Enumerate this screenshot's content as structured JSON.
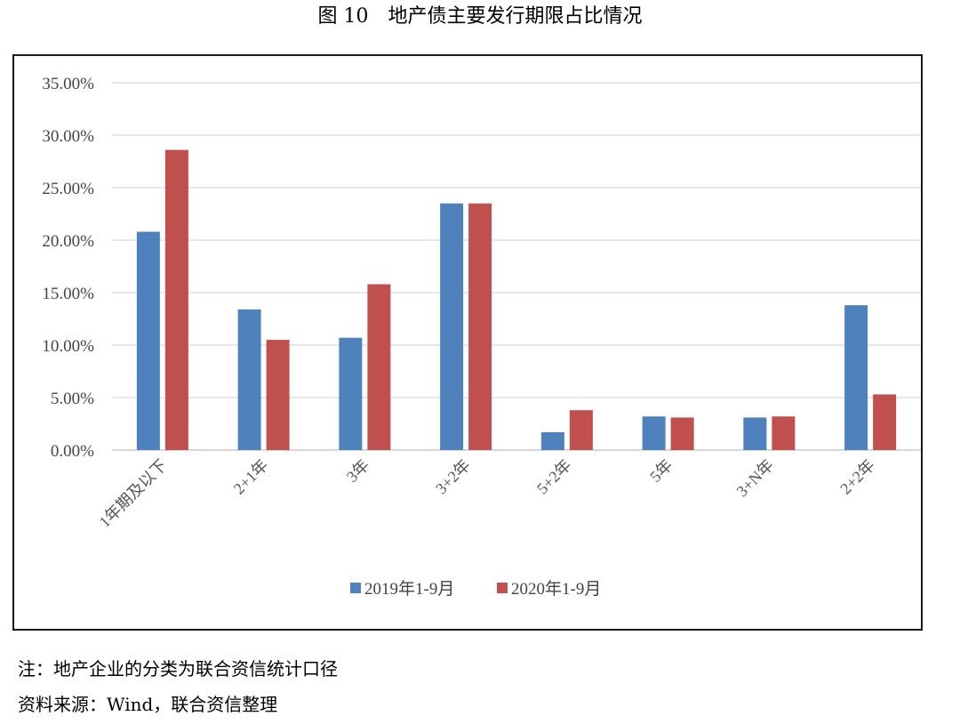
{
  "figure": {
    "title": "图 10　地产债主要发行期限占比情况",
    "note": "注：地产企业的分类为联合资信统计口径",
    "source": "资料来源：Wind，联合资信整理"
  },
  "colors": {
    "series_0": "#4f81bd",
    "series_1": "#c0504d",
    "grid": "#d9d9d9",
    "axis": "#bfbfbf"
  },
  "chart_data": {
    "type": "bar",
    "title": "",
    "xlabel": "",
    "ylabel": "",
    "categories": [
      "1年期及以下",
      "2+1年",
      "3年",
      "3+2年",
      "5+2年",
      "5年",
      "3+N年",
      "2+2年"
    ],
    "series": [
      {
        "name": "2019年1-9月",
        "values": [
          20.8,
          13.4,
          10.7,
          23.5,
          1.7,
          3.2,
          3.1,
          13.8
        ]
      },
      {
        "name": "2020年1-9月",
        "values": [
          28.6,
          10.5,
          15.8,
          23.5,
          3.8,
          3.1,
          3.2,
          5.3
        ]
      }
    ],
    "ylim": [
      0,
      35
    ],
    "yticks": [
      "0.00%",
      "5.00%",
      "10.00%",
      "15.00%",
      "20.00%",
      "25.00%",
      "30.00%",
      "35.00%"
    ],
    "grid": true,
    "legend_position": "bottom"
  }
}
